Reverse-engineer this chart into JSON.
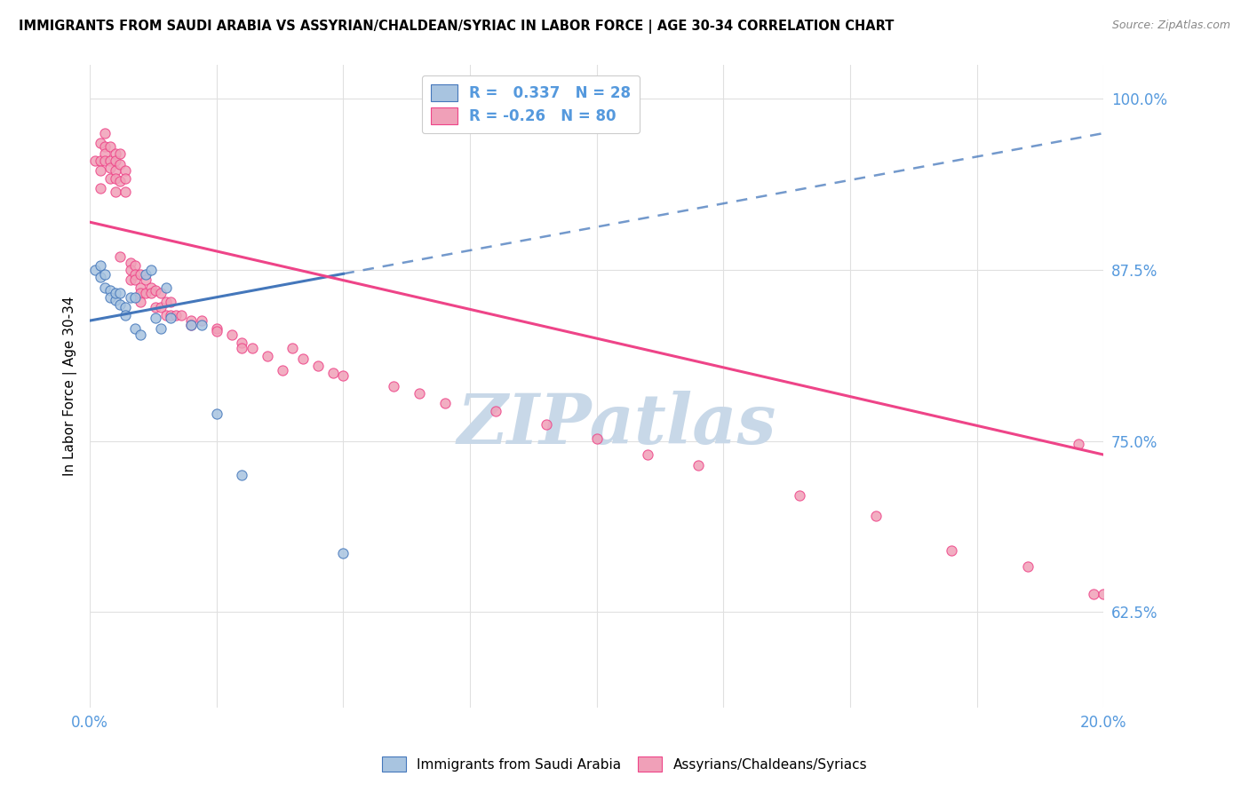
{
  "title": "IMMIGRANTS FROM SAUDI ARABIA VS ASSYRIAN/CHALDEAN/SYRIAC IN LABOR FORCE | AGE 30-34 CORRELATION CHART",
  "source": "Source: ZipAtlas.com",
  "ylabel": "In Labor Force | Age 30-34",
  "xlim": [
    0.0,
    0.2
  ],
  "ylim": [
    0.555,
    1.025
  ],
  "yticks": [
    0.625,
    0.75,
    0.875,
    1.0
  ],
  "ytick_labels": [
    "62.5%",
    "75.0%",
    "87.5%",
    "100.0%"
  ],
  "xticks": [
    0.0,
    0.025,
    0.05,
    0.075,
    0.1,
    0.125,
    0.15,
    0.175,
    0.2
  ],
  "blue_color": "#a8c4e0",
  "pink_color": "#f0a0b8",
  "blue_line_color": "#4477bb",
  "pink_line_color": "#ee4488",
  "blue_R": 0.337,
  "blue_N": 28,
  "pink_R": -0.26,
  "pink_N": 80,
  "blue_line_x0": 0.0,
  "blue_line_y0": 0.838,
  "blue_line_x1": 0.2,
  "blue_line_y1": 0.975,
  "pink_line_x0": 0.0,
  "pink_line_y0": 0.91,
  "pink_line_x1": 0.2,
  "pink_line_y1": 0.74,
  "blue_scatter_x": [
    0.001,
    0.002,
    0.002,
    0.003,
    0.003,
    0.004,
    0.004,
    0.005,
    0.005,
    0.006,
    0.006,
    0.007,
    0.007,
    0.008,
    0.009,
    0.009,
    0.01,
    0.011,
    0.012,
    0.013,
    0.014,
    0.015,
    0.016,
    0.02,
    0.022,
    0.025,
    0.03,
    0.05
  ],
  "blue_scatter_y": [
    0.875,
    0.878,
    0.87,
    0.872,
    0.862,
    0.86,
    0.855,
    0.853,
    0.858,
    0.85,
    0.858,
    0.848,
    0.842,
    0.855,
    0.855,
    0.832,
    0.828,
    0.872,
    0.875,
    0.84,
    0.832,
    0.862,
    0.84,
    0.835,
    0.835,
    0.77,
    0.725,
    0.668
  ],
  "pink_scatter_x": [
    0.001,
    0.002,
    0.002,
    0.002,
    0.002,
    0.003,
    0.003,
    0.003,
    0.003,
    0.004,
    0.004,
    0.004,
    0.004,
    0.005,
    0.005,
    0.005,
    0.005,
    0.005,
    0.006,
    0.006,
    0.006,
    0.006,
    0.007,
    0.007,
    0.007,
    0.008,
    0.008,
    0.008,
    0.009,
    0.009,
    0.009,
    0.01,
    0.01,
    0.01,
    0.01,
    0.011,
    0.011,
    0.012,
    0.012,
    0.013,
    0.013,
    0.014,
    0.014,
    0.015,
    0.015,
    0.016,
    0.016,
    0.017,
    0.018,
    0.02,
    0.02,
    0.022,
    0.025,
    0.025,
    0.028,
    0.03,
    0.03,
    0.032,
    0.035,
    0.038,
    0.04,
    0.042,
    0.045,
    0.048,
    0.05,
    0.06,
    0.065,
    0.07,
    0.08,
    0.09,
    0.1,
    0.11,
    0.12,
    0.14,
    0.155,
    0.17,
    0.185,
    0.195,
    0.198,
    0.2
  ],
  "pink_scatter_y": [
    0.955,
    0.968,
    0.955,
    0.948,
    0.935,
    0.975,
    0.965,
    0.96,
    0.955,
    0.965,
    0.955,
    0.95,
    0.942,
    0.96,
    0.955,
    0.948,
    0.942,
    0.932,
    0.96,
    0.952,
    0.94,
    0.885,
    0.948,
    0.942,
    0.932,
    0.88,
    0.875,
    0.868,
    0.878,
    0.872,
    0.868,
    0.872,
    0.862,
    0.858,
    0.852,
    0.868,
    0.858,
    0.862,
    0.858,
    0.86,
    0.848,
    0.858,
    0.848,
    0.852,
    0.842,
    0.852,
    0.842,
    0.842,
    0.842,
    0.838,
    0.835,
    0.838,
    0.832,
    0.83,
    0.828,
    0.822,
    0.818,
    0.818,
    0.812,
    0.802,
    0.818,
    0.81,
    0.805,
    0.8,
    0.798,
    0.79,
    0.785,
    0.778,
    0.772,
    0.762,
    0.752,
    0.74,
    0.732,
    0.71,
    0.695,
    0.67,
    0.658,
    0.748,
    0.638,
    0.638
  ],
  "watermark": "ZIPatlas",
  "watermark_color": "#c8d8e8",
  "axis_color": "#5599dd",
  "grid_color": "#e0e0e0",
  "background_color": "#ffffff"
}
